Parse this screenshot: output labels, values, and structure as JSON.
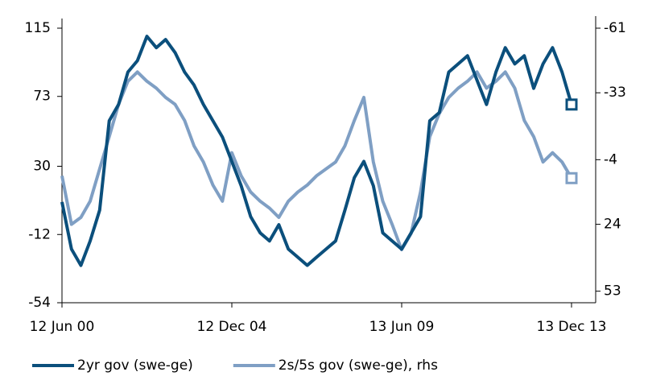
{
  "chart_data": {
    "type": "line",
    "x": [
      "2000-06-12",
      "2000-09-12",
      "2000-12-12",
      "2001-03-12",
      "2001-06-12",
      "2001-09-12",
      "2001-12-12",
      "2002-03-12",
      "2002-06-12",
      "2002-09-12",
      "2002-12-12",
      "2003-03-12",
      "2003-06-12",
      "2003-09-12",
      "2003-12-12",
      "2004-03-12",
      "2004-06-12",
      "2004-09-12",
      "2004-12-12",
      "2005-03-12",
      "2005-06-12",
      "2005-09-12",
      "2005-12-12",
      "2006-03-12",
      "2006-06-12",
      "2006-09-12",
      "2006-12-12",
      "2007-03-12",
      "2007-06-12",
      "2007-09-12",
      "2007-12-12",
      "2008-03-12",
      "2008-06-12",
      "2008-09-12",
      "2008-12-12",
      "2009-03-12",
      "2009-06-12",
      "2009-09-12",
      "2009-12-12",
      "2010-03-12",
      "2010-06-12",
      "2010-09-12",
      "2010-12-12",
      "2011-03-12",
      "2011-06-12",
      "2011-09-12",
      "2011-12-12",
      "2012-03-12",
      "2012-06-12",
      "2012-09-12",
      "2012-12-12",
      "2013-03-12",
      "2013-06-12",
      "2013-09-12",
      "2013-12-13"
    ],
    "series": [
      {
        "name": "2yr gov (swe-ge)",
        "color": "#0b4f7c",
        "values": [
          8,
          -21,
          -31,
          -16,
          3,
          58,
          68,
          88,
          95,
          110,
          103,
          108,
          100,
          88,
          80,
          68,
          58,
          48,
          33,
          18,
          -1,
          -11,
          -16,
          -6,
          -21,
          -26,
          -31,
          -26,
          -21,
          -16,
          3,
          23,
          33,
          18,
          -11,
          -16,
          -21,
          -11,
          -1,
          58,
          63,
          88,
          93,
          98,
          83,
          68,
          88,
          103,
          93,
          98,
          78,
          93,
          103,
          88,
          68
        ]
      },
      {
        "name": "2s/5s gov (swe-ge), rhs",
        "color": "#7f9fc4",
        "axis": "y2",
        "values": [
          3,
          24,
          21,
          14,
          0,
          -14,
          -28,
          -38,
          -42,
          -38,
          -35,
          -31,
          -28,
          -21,
          -10,
          -3,
          7,
          14,
          -7,
          3,
          10,
          14,
          17,
          21,
          14,
          10,
          7,
          3,
          0,
          -3,
          -10,
          -21,
          -31,
          -3,
          14,
          24,
          35,
          28,
          10,
          -14,
          -24,
          -31,
          -35,
          -38,
          -42,
          -35,
          -38,
          -42,
          -35,
          -21,
          -14,
          -3,
          -7,
          -3,
          4
        ]
      }
    ],
    "xlim": [
      "2000-06-12",
      "2013-12-13"
    ],
    "xticks": [
      {
        "value": "2000-06-12",
        "label": "12 Jun 00"
      },
      {
        "value": "2004-12-12",
        "label": "12 Dec 04"
      },
      {
        "value": "2009-06-13",
        "label": "13 Jun 09"
      },
      {
        "value": "2013-12-13",
        "label": "13 Dec 13"
      }
    ],
    "ylim": [
      -54,
      115
    ],
    "yticks": [
      -54,
      -12,
      30,
      73,
      115
    ],
    "y2lim": [
      58,
      -61
    ],
    "y2ticks": [
      53,
      24,
      -4,
      -33,
      -61
    ],
    "legend": "bottom"
  }
}
